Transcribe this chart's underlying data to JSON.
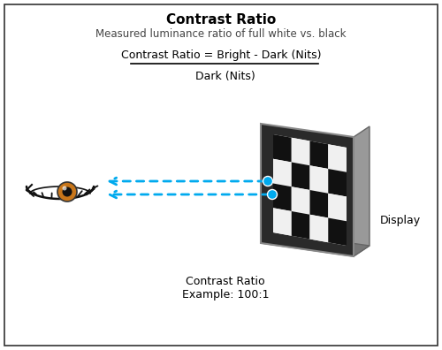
{
  "title": "Contrast Ratio",
  "subtitle": "Measured luminance ratio of full white vs. black",
  "formula_numerator": "Contrast Ratio = Bright - Dark (Nits)",
  "formula_denominator": "Dark (Nits)",
  "bottom_label_line1": "Contrast Ratio",
  "bottom_label_line2": "Example: 100:1",
  "display_label": "Display",
  "bg_color": "#ffffff",
  "border_color": "#333333",
  "arrow_color": "#00aaee",
  "dot_color": "#00aaee",
  "checker_black": "#111111",
  "checker_white": "#f0f0f0",
  "display_frame_color": "#555555",
  "display_frame_light": "#aaaaaa",
  "title_fontsize": 11,
  "subtitle_fontsize": 8.5,
  "formula_fontsize": 9,
  "label_fontsize": 9
}
